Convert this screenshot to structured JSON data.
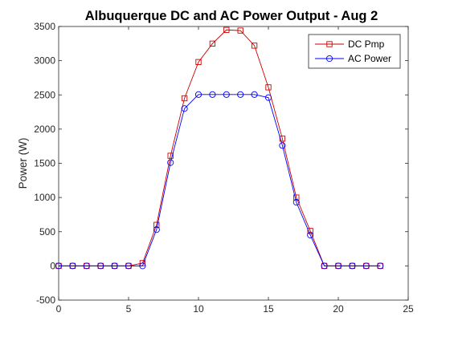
{
  "chart_data": {
    "type": "line",
    "title": "Albuquerque DC and AC Power Output - Aug 2",
    "xlabel": "",
    "ylabel": "Power (W)",
    "xlim": [
      0,
      25
    ],
    "ylim": [
      -500,
      3500
    ],
    "xticks": [
      0,
      5,
      10,
      15,
      20,
      25
    ],
    "yticks": [
      -500,
      0,
      500,
      1000,
      1500,
      2000,
      2500,
      3000,
      3500
    ],
    "grid": false,
    "legend_position": "top-right",
    "x": [
      0,
      1,
      2,
      3,
      4,
      5,
      6,
      7,
      8,
      9,
      10,
      11,
      12,
      13,
      14,
      15,
      16,
      17,
      18,
      19,
      20,
      21,
      22,
      23
    ],
    "series": [
      {
        "name": "DC Pmp",
        "color": "#cc0000",
        "marker": "square",
        "values": [
          0,
          0,
          0,
          0,
          0,
          0,
          40,
          600,
          1610,
          2450,
          2980,
          3250,
          3450,
          3440,
          3220,
          2610,
          1860,
          1000,
          510,
          0,
          0,
          0,
          0,
          0
        ]
      },
      {
        "name": "AC Power",
        "color": "#0000ff",
        "marker": "circle",
        "values": [
          0,
          0,
          0,
          0,
          0,
          0,
          0,
          530,
          1510,
          2300,
          2505,
          2505,
          2505,
          2505,
          2505,
          2460,
          1760,
          930,
          450,
          0,
          0,
          0,
          0,
          0
        ]
      }
    ]
  }
}
